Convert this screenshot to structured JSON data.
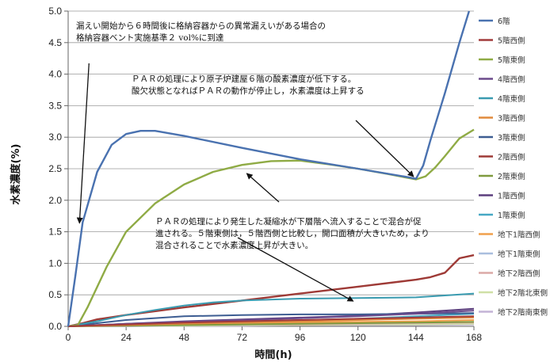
{
  "chart_data": {
    "type": "line",
    "xlabel": "時間(h)",
    "ylabel": "水素濃度(%)",
    "xlim": [
      0,
      168
    ],
    "ylim": [
      0,
      5.0
    ],
    "xticks": [
      "0",
      "24",
      "48",
      "72",
      "96",
      "120",
      "144",
      "168"
    ],
    "yticks": [
      "0.0",
      "0.5",
      "1.0",
      "1.5",
      "2.0",
      "2.5",
      "3.0",
      "3.5",
      "4.0",
      "4.5",
      "5.0"
    ],
    "grid": "horizontal",
    "legend_position": "right",
    "annotations": [
      {
        "lines": [
          "漏えい開始から６時間後に格納容器からの異常漏えいがある場合の",
          "格納容器ベント実施基準２ vol%に到達"
        ]
      },
      {
        "lines": [
          "ＰＡＲの処理により原子炉建屋６階の酸素濃度が低下する。",
          "酸欠状態となればＰＡＲの動作が停止し，水素濃度は上昇する"
        ]
      },
      {
        "lines": [
          "ＰＡＲの処理により発生した凝縮水が下層階へ流入することで混合が促",
          "進される。５階東側は，５階西側と比較し，開口面積が大きいため，より",
          "混合されることで水素濃度上昇が大きい。"
        ]
      }
    ],
    "series": [
      {
        "name": "6階",
        "color": "#4a72b0",
        "x": [
          0,
          3,
          6,
          12,
          18,
          24,
          30,
          36,
          48,
          72,
          96,
          120,
          140,
          144,
          147,
          150,
          156,
          162,
          166
        ],
        "values": [
          0,
          0.8,
          1.65,
          2.45,
          2.88,
          3.05,
          3.1,
          3.1,
          3.02,
          2.83,
          2.65,
          2.5,
          2.37,
          2.34,
          2.55,
          2.95,
          3.7,
          4.5,
          5.0
        ]
      },
      {
        "name": "5階西側",
        "color": "#a23b3b",
        "x": [
          0,
          6,
          24,
          48,
          72,
          96,
          120,
          144,
          168
        ],
        "values": [
          0,
          0.01,
          0.03,
          0.06,
          0.08,
          0.1,
          0.12,
          0.14,
          0.16
        ]
      },
      {
        "name": "5階東側",
        "color": "#8fab45",
        "x": [
          0,
          4,
          8,
          16,
          24,
          36,
          48,
          60,
          72,
          84,
          96,
          108,
          120,
          132,
          144,
          148,
          152,
          156,
          162,
          168
        ],
        "values": [
          0,
          0.02,
          0.3,
          0.95,
          1.5,
          1.95,
          2.25,
          2.45,
          2.56,
          2.62,
          2.63,
          2.57,
          2.5,
          2.42,
          2.33,
          2.38,
          2.52,
          2.7,
          2.98,
          3.12
        ]
      },
      {
        "name": "4階西側",
        "color": "#6b4a8c",
        "x": [
          0,
          24,
          48,
          72,
          96,
          120,
          144,
          168
        ],
        "values": [
          0,
          0.04,
          0.07,
          0.1,
          0.13,
          0.16,
          0.2,
          0.25
        ]
      },
      {
        "name": "4階東側",
        "color": "#3a9bb0",
        "x": [
          0,
          12,
          24,
          36,
          48,
          60,
          72,
          96,
          120,
          144,
          156,
          168
        ],
        "values": [
          0,
          0.08,
          0.18,
          0.26,
          0.33,
          0.38,
          0.41,
          0.44,
          0.45,
          0.46,
          0.49,
          0.52
        ]
      },
      {
        "name": "3階西側",
        "color": "#e08a3c",
        "x": [
          0,
          24,
          48,
          72,
          96,
          120,
          144,
          168
        ],
        "values": [
          0,
          0.02,
          0.04,
          0.06,
          0.08,
          0.1,
          0.12,
          0.14
        ]
      },
      {
        "name": "3階東側",
        "color": "#3d5d92",
        "x": [
          0,
          12,
          24,
          48,
          72,
          96,
          120,
          144,
          168
        ],
        "values": [
          0,
          0.05,
          0.1,
          0.16,
          0.18,
          0.19,
          0.19,
          0.2,
          0.21
        ]
      },
      {
        "name": "2階西側",
        "color": "#9e3a36",
        "x": [
          0,
          6,
          12,
          24,
          48,
          72,
          96,
          120,
          144,
          150,
          156,
          162,
          168
        ],
        "values": [
          0,
          0.05,
          0.11,
          0.18,
          0.3,
          0.41,
          0.52,
          0.63,
          0.74,
          0.78,
          0.85,
          1.08,
          1.13
        ]
      },
      {
        "name": "2階東側",
        "color": "#7f9a3e",
        "x": [
          0,
          24,
          48,
          72,
          96,
          120,
          144,
          168
        ],
        "values": [
          0,
          0.01,
          0.02,
          0.03,
          0.04,
          0.05,
          0.06,
          0.07
        ]
      },
      {
        "name": "1階西側",
        "color": "#5c3f7e",
        "x": [
          0,
          24,
          48,
          72,
          96,
          120,
          144,
          168
        ],
        "values": [
          0,
          0.04,
          0.08,
          0.11,
          0.14,
          0.17,
          0.22,
          0.28
        ]
      },
      {
        "name": "1階東側",
        "color": "#46a8c4",
        "x": [
          0,
          24,
          48,
          72,
          96,
          120,
          144,
          168
        ],
        "values": [
          0,
          0.03,
          0.06,
          0.08,
          0.1,
          0.12,
          0.16,
          0.2
        ]
      },
      {
        "name": "地下1階西側",
        "color": "#f0a04b",
        "x": [
          0,
          24,
          48,
          72,
          96,
          120,
          144,
          168
        ],
        "values": [
          0,
          0.02,
          0.04,
          0.05,
          0.06,
          0.07,
          0.08,
          0.1
        ]
      },
      {
        "name": "地下1階東側",
        "color": "#a9bede",
        "x": [
          0,
          24,
          48,
          72,
          96,
          120,
          144,
          168
        ],
        "values": [
          0,
          0.01,
          0.02,
          0.03,
          0.04,
          0.05,
          0.06,
          0.07
        ]
      },
      {
        "name": "地下2階西側",
        "color": "#dba9a6",
        "x": [
          0,
          24,
          48,
          72,
          96,
          120,
          144,
          168
        ],
        "values": [
          0,
          0.01,
          0.02,
          0.03,
          0.03,
          0.04,
          0.05,
          0.06
        ]
      },
      {
        "name": "地下2階北東側",
        "color": "#cfe0a6",
        "x": [
          0,
          24,
          48,
          72,
          96,
          120,
          144,
          168
        ],
        "values": [
          0,
          0.01,
          0.01,
          0.02,
          0.02,
          0.03,
          0.03,
          0.04
        ]
      },
      {
        "name": "地下2階南東側",
        "color": "#c3b3d6",
        "x": [
          0,
          24,
          48,
          72,
          96,
          120,
          144,
          168
        ],
        "values": [
          0,
          0.0,
          0.01,
          0.01,
          0.02,
          0.02,
          0.02,
          0.03
        ]
      }
    ]
  }
}
